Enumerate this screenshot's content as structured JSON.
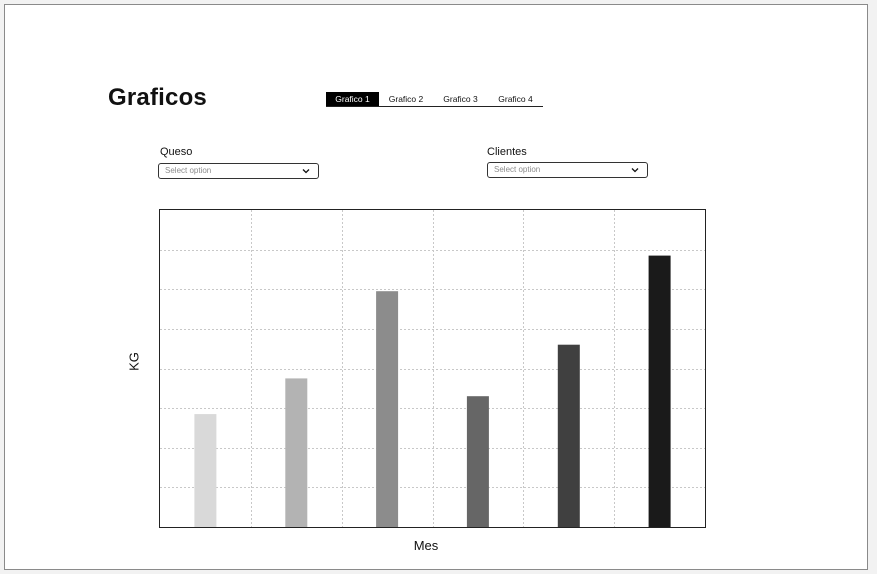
{
  "page": {
    "title": "Graficos"
  },
  "tabs": [
    {
      "label": "Grafico 1",
      "active": true
    },
    {
      "label": "Grafico 2",
      "active": false
    },
    {
      "label": "Grafico 3",
      "active": false
    },
    {
      "label": "Grafico 4",
      "active": false
    }
  ],
  "filters": {
    "queso": {
      "label": "Queso",
      "placeholder": "Select option"
    },
    "clientes": {
      "label": "Clientes",
      "placeholder": "Select option"
    }
  },
  "icons": {
    "dropdown": "chevron-down-icon"
  },
  "chart_data": {
    "type": "bar",
    "xlabel": "Mes",
    "ylabel": "KG",
    "ylim": [
      0,
      8
    ],
    "grid": true,
    "values": [
      2.85,
      3.75,
      5.95,
      3.3,
      4.6,
      6.85
    ],
    "colors": [
      "#d9d9d9",
      "#b3b3b3",
      "#8c8c8c",
      "#666666",
      "#404040",
      "#1a1a1a"
    ]
  }
}
